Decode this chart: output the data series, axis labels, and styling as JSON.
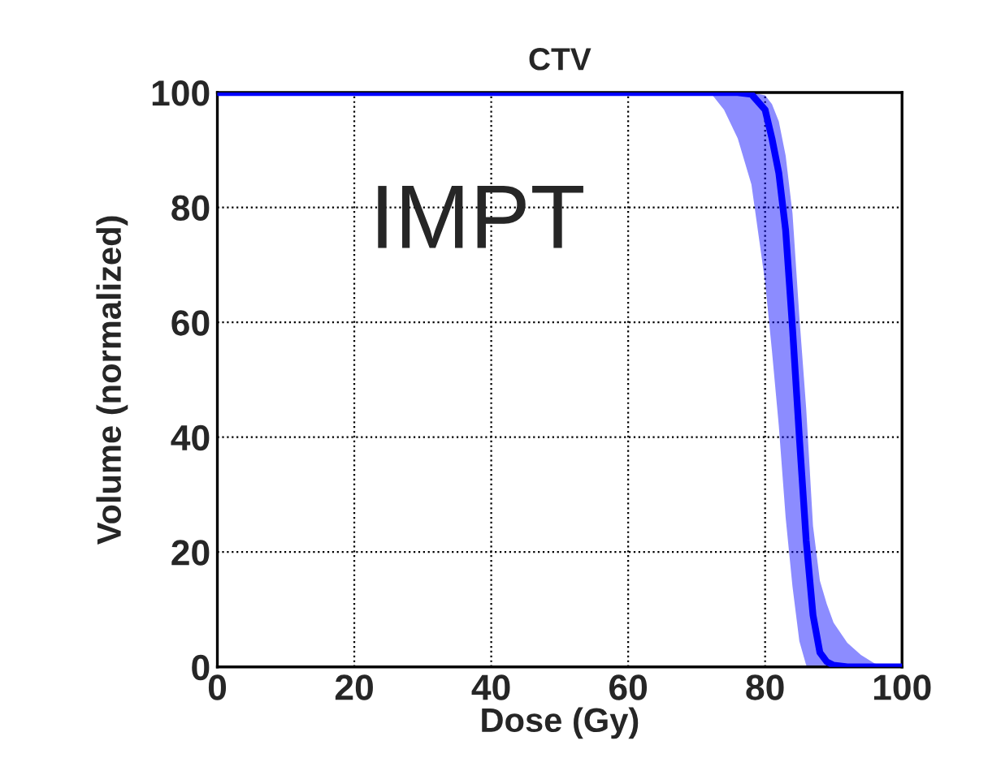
{
  "chart_data": {
    "type": "line",
    "title": "CTV",
    "xlabel": "Dose (Gy)",
    "ylabel": "Volume (normalized)",
    "x": [
      0,
      70,
      72,
      74,
      76,
      78,
      80,
      81,
      82,
      83,
      84,
      85,
      86,
      87,
      88,
      89,
      90,
      92,
      94,
      96,
      98,
      100
    ],
    "series": [
      {
        "color": "#0000ff",
        "values": [
          100,
          100,
          100,
          100,
          100,
          99.7,
          97,
          92,
          86,
          76,
          59,
          40,
          22,
          9,
          2.5,
          0.9,
          0.3,
          0,
          0,
          0,
          0,
          0
        ],
        "lower": [
          100,
          100,
          100,
          100,
          100,
          100,
          99.5,
          98,
          95,
          89,
          79,
          61,
          45,
          24.5,
          15,
          11,
          7.7,
          4.2,
          2.1,
          0.6,
          0,
          0
        ],
        "upper": [
          100,
          100,
          100,
          97,
          92,
          84,
          67,
          55,
          42,
          26,
          14,
          4.5,
          0.3,
          0,
          0,
          0,
          0,
          0,
          0,
          0,
          0,
          0
        ]
      }
    ],
    "annotations": [
      "IMPT"
    ],
    "xlim": [
      0,
      100
    ],
    "ylim": [
      0,
      100
    ],
    "xticks": [
      0,
      20,
      40,
      60,
      80,
      100
    ],
    "yticks": [
      0,
      20,
      40,
      60,
      80,
      100
    ],
    "grid": true,
    "line_style": "solid",
    "marker": "none"
  }
}
